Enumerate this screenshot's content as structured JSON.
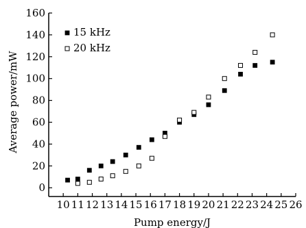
{
  "chart_data": {
    "type": "scatter",
    "xlabel": "Pump energy/J",
    "ylabel": "Average power/mW",
    "xlim": [
      9,
      26
    ],
    "ylim": [
      -8,
      160
    ],
    "xticks": [
      10,
      11,
      12,
      13,
      14,
      15,
      16,
      17,
      18,
      19,
      20,
      21,
      22,
      23,
      24,
      25,
      26
    ],
    "yticks": [
      0,
      20,
      40,
      60,
      80,
      100,
      120,
      140,
      160
    ],
    "legend_position": "top-left",
    "series": [
      {
        "name": "15 kHz",
        "marker": "filled-square",
        "color": "#000000",
        "points": [
          [
            10.3,
            7
          ],
          [
            11.0,
            8
          ],
          [
            11.8,
            16
          ],
          [
            12.6,
            20
          ],
          [
            13.4,
            24
          ],
          [
            14.3,
            30
          ],
          [
            15.2,
            37
          ],
          [
            16.1,
            44
          ],
          [
            17.0,
            50
          ],
          [
            18.0,
            60
          ],
          [
            19.0,
            67
          ],
          [
            20.0,
            76
          ],
          [
            21.1,
            89
          ],
          [
            22.2,
            104
          ],
          [
            23.2,
            112
          ],
          [
            24.4,
            115
          ]
        ]
      },
      {
        "name": "20 kHz",
        "marker": "hollow-square",
        "color": "#000000",
        "points": [
          [
            11.0,
            4
          ],
          [
            11.8,
            5
          ],
          [
            12.6,
            8
          ],
          [
            13.4,
            11
          ],
          [
            14.3,
            15
          ],
          [
            15.2,
            20
          ],
          [
            16.1,
            27
          ],
          [
            17.0,
            47
          ],
          [
            18.0,
            62
          ],
          [
            19.0,
            69
          ],
          [
            20.0,
            83
          ],
          [
            21.1,
            100
          ],
          [
            22.2,
            112
          ],
          [
            23.2,
            124
          ],
          [
            24.4,
            140
          ]
        ]
      }
    ]
  }
}
